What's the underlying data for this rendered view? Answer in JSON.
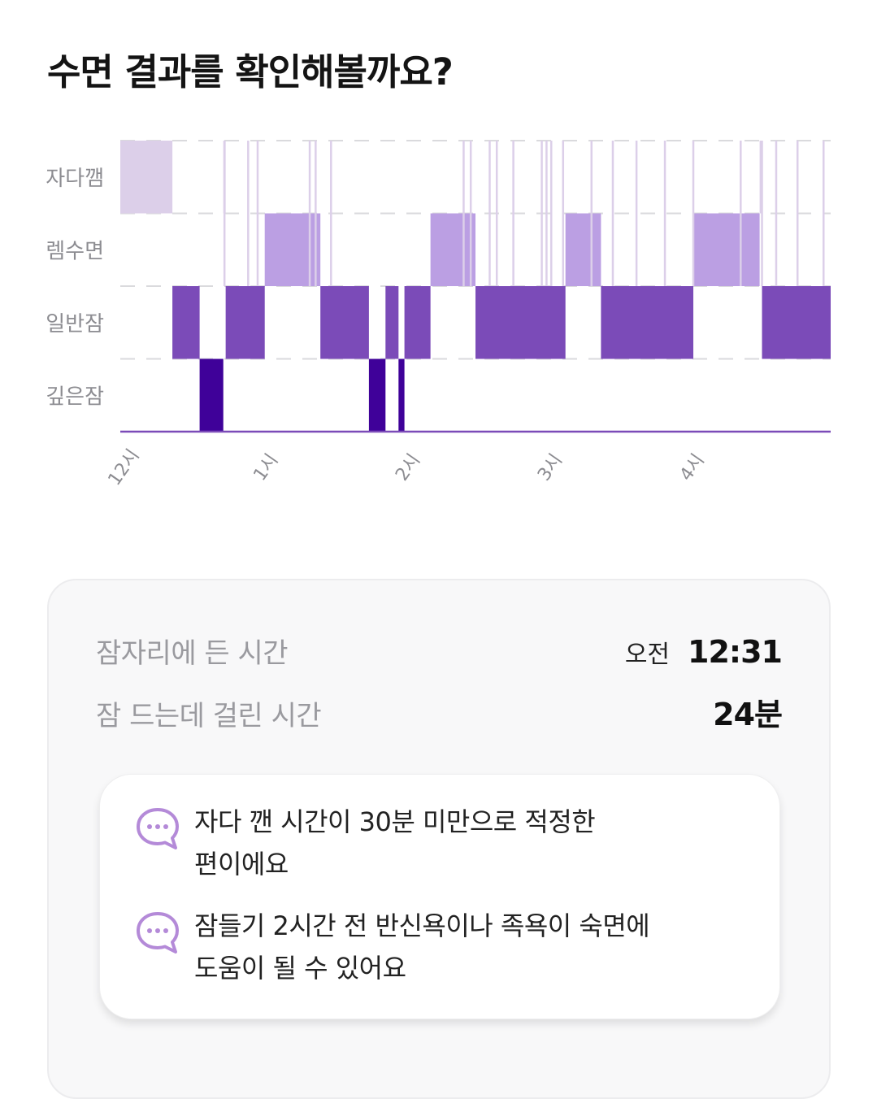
{
  "header": {
    "title": "수면 결과를 확인해볼까요?"
  },
  "colors": {
    "awake": "#dccfe9",
    "rem": "#bb9fe3",
    "light": "#7b4bb8",
    "deep": "#3f0199",
    "grid": "#dadadd",
    "label": "#8c8c91",
    "accent": "#b48ad8"
  },
  "chart_data": {
    "type": "hypnogram",
    "y_categories": [
      "자다깸",
      "렘수면",
      "일반잠",
      "깊은잠"
    ],
    "x_ticks": [
      {
        "label": "12시",
        "minute": 0
      },
      {
        "label": "1시",
        "minute": 60
      },
      {
        "label": "2시",
        "minute": 120
      },
      {
        "label": "3시",
        "minute": 180
      },
      {
        "label": "4시",
        "minute": 240
      }
    ],
    "xlim_minutes": [
      0,
      300
    ],
    "grid": true,
    "segments": [
      {
        "stage": "자다깸",
        "start": 0,
        "end": 22
      },
      {
        "stage": "일반잠",
        "start": 22,
        "end": 33.5
      },
      {
        "stage": "깊은잠",
        "start": 33.5,
        "end": 43.5
      },
      {
        "stage": "자다깸",
        "start": 43.5,
        "end": 44.5
      },
      {
        "stage": "일반잠",
        "start": 44.5,
        "end": 61
      },
      {
        "stage": "렘수면",
        "start": 61,
        "end": 84.5
      },
      {
        "stage": "일반잠",
        "start": 84.5,
        "end": 105
      },
      {
        "stage": "깊은잠",
        "start": 105,
        "end": 112
      },
      {
        "stage": "일반잠",
        "start": 112,
        "end": 117.5
      },
      {
        "stage": "깊은잠",
        "start": 117.5,
        "end": 120
      },
      {
        "stage": "일반잠",
        "start": 120,
        "end": 131
      },
      {
        "stage": "렘수면",
        "start": 131,
        "end": 150
      },
      {
        "stage": "일반잠",
        "start": 150,
        "end": 188
      },
      {
        "stage": "렘수면",
        "start": 188,
        "end": 203
      },
      {
        "stage": "일반잠",
        "start": 203,
        "end": 242
      },
      {
        "stage": "렘수면",
        "start": 242,
        "end": 270
      },
      {
        "stage": "자다깸",
        "start": 270,
        "end": 271
      },
      {
        "stage": "일반잠",
        "start": 271,
        "end": 300
      }
    ],
    "awake_blips_minutes": [
      44,
      54,
      58,
      80,
      82.5,
      89,
      145,
      148,
      156,
      159,
      166,
      178,
      180,
      182,
      187,
      199,
      208,
      218,
      230,
      242,
      262,
      271,
      277,
      286,
      297
    ]
  },
  "summary": {
    "bedtime_label": "잠자리에 든 시간",
    "bedtime_ampm": "오전",
    "bedtime_value": "12:31",
    "latency_label": "잠 드는데 걸린 시간",
    "latency_value": "24분"
  },
  "tips": [
    {
      "icon": "chat-bubble-icon",
      "text": "자다 깬 시간이 30분 미만으로 적정한\n편이에요"
    },
    {
      "icon": "chat-bubble-icon",
      "text": "잠들기 2시간 전 반신욕이나 족욕이 숙면에\n도움이 될 수 있어요"
    }
  ]
}
